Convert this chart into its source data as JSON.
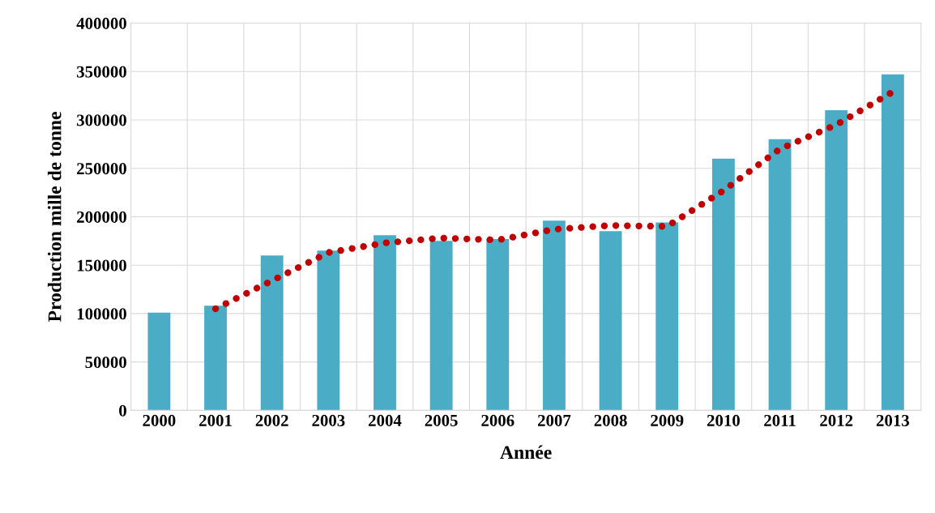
{
  "chart_data": {
    "type": "bar",
    "xlabel": "Année",
    "ylabel": "Production mille de tonne",
    "categories": [
      "2000",
      "2001",
      "2002",
      "2003",
      "2004",
      "2005",
      "2006",
      "2007",
      "2008",
      "2009",
      "2010",
      "2011",
      "2012",
      "2013"
    ],
    "series": [
      {
        "color": "#4bacc6",
        "values": [
          101000,
          108000,
          160000,
          165000,
          181000,
          175000,
          177000,
          196000,
          185000,
          194000,
          260000,
          280000,
          310000,
          347000
        ]
      },
      {
        "type": "line",
        "color": "#c00000",
        "line_style": "dotted",
        "values": [
          null,
          105000,
          134000,
          163000,
          173000,
          178000,
          176000,
          187000,
          191000,
          190000,
          227000,
          270000,
          295000,
          329000
        ]
      }
    ],
    "ylim": [
      0,
      400000
    ],
    "yticks": [
      0,
      50000,
      100000,
      150000,
      200000,
      250000,
      300000,
      350000,
      400000
    ],
    "grid": true
  }
}
